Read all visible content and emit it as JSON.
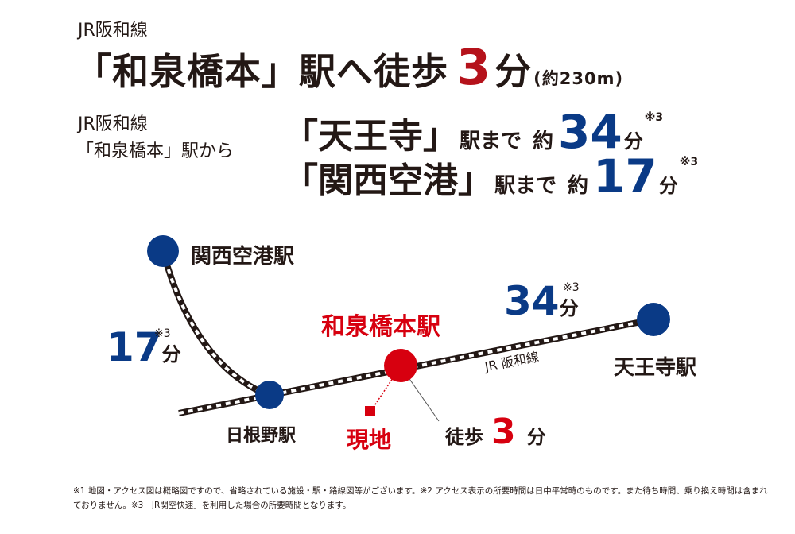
{
  "header": {
    "line_label": "JR阪和線",
    "headline_station": "「和泉橋本」駅へ徒歩",
    "headline_minutes": "3",
    "headline_unit": "分",
    "headline_distance": "(約230m)"
  },
  "access": {
    "from_line": "JR阪和線",
    "from_station": "「和泉橋本」駅から",
    "destinations": [
      {
        "station": "「天王寺」",
        "suffix": "駅まで",
        "approx": "約",
        "minutes": "34",
        "unit": "分",
        "note": "※3"
      },
      {
        "station": "「関西空港」",
        "suffix": "駅まで",
        "approx": "約",
        "minutes": "17",
        "unit": "分",
        "note": "※3"
      }
    ]
  },
  "map": {
    "stations": {
      "kansai": "関西空港駅",
      "tennoji": "天王寺駅",
      "hine": "日根野駅",
      "izumi": "和泉橋本駅"
    },
    "site": "現地",
    "line_name": "JR 阪和線",
    "walk": {
      "prefix": "徒歩",
      "minutes": "3",
      "unit": "分"
    },
    "kansai_time": {
      "minutes": "17",
      "unit": "分",
      "note": "※3"
    },
    "tennoji_time": {
      "minutes": "34",
      "unit": "分",
      "note": "※3"
    },
    "colors": {
      "station_blue": "#0a3a86",
      "accent_red": "#b5121b",
      "site_red": "#d7000f"
    }
  },
  "footnote": "※1 地図・アクセス図は概略図ですので、省略されている施設・駅・路線図等がございます。※2 アクセス表示の所要時間は日中平常時のものです。また待ち時間、乗り換え時間は含まれておりません。※3「JR関空快速」を利用した場合の所要時間となります。"
}
